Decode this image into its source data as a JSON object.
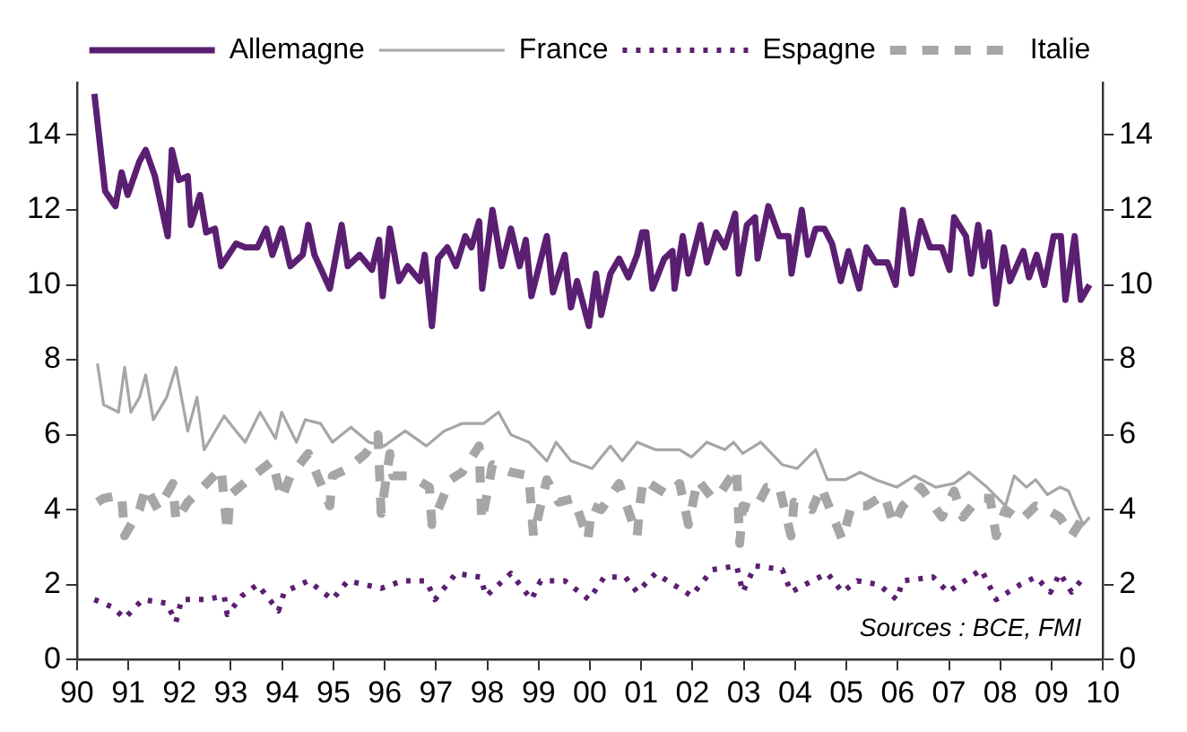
{
  "chart_data": {
    "type": "line",
    "annotations": [
      "Sources : BCE, FMI"
    ],
    "xlim": [
      1990,
      2010
    ],
    "xticks": [
      {
        "value": 1990,
        "label": "90"
      },
      {
        "value": 1991,
        "label": "91"
      },
      {
        "value": 1992,
        "label": "92"
      },
      {
        "value": 1993,
        "label": "93"
      },
      {
        "value": 1994,
        "label": "94"
      },
      {
        "value": 1995,
        "label": "95"
      },
      {
        "value": 1996,
        "label": "96"
      },
      {
        "value": 1997,
        "label": "97"
      },
      {
        "value": 1998,
        "label": "98"
      },
      {
        "value": 1999,
        "label": "99"
      },
      {
        "value": 2000,
        "label": "00"
      },
      {
        "value": 2001,
        "label": "01"
      },
      {
        "value": 2002,
        "label": "02"
      },
      {
        "value": 2003,
        "label": "03"
      },
      {
        "value": 2004,
        "label": "04"
      },
      {
        "value": 2005,
        "label": "05"
      },
      {
        "value": 2006,
        "label": "06"
      },
      {
        "value": 2007,
        "label": "07"
      },
      {
        "value": 2008,
        "label": "08"
      },
      {
        "value": 2009,
        "label": "09"
      },
      {
        "value": 2010,
        "label": "10"
      }
    ],
    "ylim": [
      0,
      15.4
    ],
    "yticks": [
      0,
      2,
      4,
      6,
      8,
      10,
      12,
      14
    ],
    "y2lim": [
      0,
      15.4
    ],
    "y2ticks": [
      0,
      2,
      4,
      6,
      8,
      10,
      12,
      14
    ],
    "grid": false,
    "legend": "top",
    "marker": "none",
    "series": [
      {
        "name": "Allemagne",
        "color": "#5b1f72",
        "line_style": "solid",
        "x": [
          1990.34,
          1990.55,
          1990.75,
          1990.87,
          1990.99,
          1991.22,
          1991.34,
          1991.52,
          1991.77,
          1991.85,
          1991.99,
          1992.16,
          1992.22,
          1992.4,
          1992.52,
          1992.69,
          1992.81,
          1993.1,
          1993.28,
          1993.52,
          1993.69,
          1993.81,
          1993.99,
          1994.16,
          1994.4,
          1994.51,
          1994.63,
          1994.93,
          1995.16,
          1995.28,
          1995.51,
          1995.75,
          1995.89,
          1995.96,
          1996.1,
          1996.28,
          1996.45,
          1996.69,
          1996.78,
          1996.92,
          1997.04,
          1997.22,
          1997.39,
          1997.57,
          1997.69,
          1997.84,
          1997.9,
          1998.1,
          1998.28,
          1998.46,
          1998.63,
          1998.75,
          1998.86,
          1999.16,
          1999.28,
          1999.51,
          1999.63,
          1999.75,
          1999.98,
          2000.12,
          2000.22,
          2000.4,
          2000.57,
          2000.75,
          2000.92,
          2001.02,
          2001.1,
          2001.22,
          2001.45,
          2001.61,
          2001.65,
          2001.81,
          2001.92,
          2002.16,
          2002.28,
          2002.46,
          2002.63,
          2002.83,
          2002.9,
          2003.06,
          2003.22,
          2003.27,
          2003.48,
          2003.69,
          2003.87,
          2003.93,
          2004.13,
          2004.25,
          2004.4,
          2004.57,
          2004.72,
          2004.89,
          2005.04,
          2005.25,
          2005.39,
          2005.57,
          2005.8,
          2005.96,
          2006.1,
          2006.27,
          2006.45,
          2006.63,
          2006.86,
          2007.01,
          2007.1,
          2007.33,
          2007.43,
          2007.57,
          2007.68,
          2007.78,
          2007.92,
          2008.07,
          2008.19,
          2008.45,
          2008.56,
          2008.71,
          2008.86,
          2009.04,
          2009.18,
          2009.27,
          2009.45,
          2009.57,
          2009.74
        ],
        "values": [
          15.1,
          12.5,
          12.1,
          13.0,
          12.4,
          13.3,
          13.6,
          12.9,
          11.3,
          13.6,
          12.8,
          12.9,
          11.6,
          12.4,
          11.4,
          11.5,
          10.5,
          11.1,
          11.0,
          11.0,
          11.5,
          10.8,
          11.5,
          10.5,
          10.8,
          11.6,
          10.8,
          9.9,
          11.6,
          10.5,
          10.8,
          10.4,
          11.2,
          9.7,
          11.5,
          10.1,
          10.5,
          10.1,
          10.8,
          8.9,
          10.7,
          11.0,
          10.5,
          11.3,
          11.0,
          11.7,
          9.9,
          12.0,
          10.5,
          11.5,
          10.5,
          11.2,
          9.7,
          11.3,
          9.8,
          10.8,
          9.4,
          10.1,
          8.9,
          10.3,
          9.2,
          10.3,
          10.7,
          10.2,
          10.8,
          11.4,
          11.4,
          9.9,
          10.7,
          10.9,
          9.9,
          11.3,
          10.3,
          11.6,
          10.6,
          11.4,
          11.0,
          11.9,
          10.3,
          11.6,
          11.8,
          10.7,
          12.1,
          11.3,
          11.3,
          10.3,
          12.0,
          10.8,
          11.5,
          11.5,
          11.1,
          10.1,
          10.9,
          9.9,
          11.0,
          10.6,
          10.6,
          10.0,
          12.0,
          10.3,
          11.7,
          11.0,
          11.0,
          10.4,
          11.8,
          11.3,
          10.3,
          11.6,
          10.5,
          11.4,
          9.5,
          11.0,
          10.1,
          10.9,
          10.2,
          10.8,
          10.0,
          11.3,
          11.3,
          9.6,
          11.3,
          9.6,
          10.0
        ]
      },
      {
        "name": "France",
        "color": "#a6a6a6",
        "line_style": "solid",
        "x": [
          1990.4,
          1990.52,
          1990.81,
          1990.93,
          1991.05,
          1991.22,
          1991.34,
          1991.49,
          1991.75,
          1991.93,
          1992.16,
          1992.34,
          1992.48,
          1992.87,
          1993.1,
          1993.28,
          1993.57,
          1993.87,
          1993.99,
          1994.28,
          1994.45,
          1994.75,
          1994.98,
          1995.34,
          1995.69,
          1995.99,
          1996.4,
          1996.81,
          1997.16,
          1997.51,
          1997.93,
          1998.22,
          1998.46,
          1998.81,
          1999.16,
          1999.34,
          1999.63,
          2000.04,
          2000.4,
          2000.63,
          2000.92,
          2001.28,
          2001.51,
          2001.75,
          2001.98,
          2002.28,
          2002.63,
          2002.8,
          2002.98,
          2003.33,
          2003.75,
          2004.04,
          2004.4,
          2004.63,
          2004.98,
          2005.27,
          2005.57,
          2005.98,
          2006.33,
          2006.74,
          2007.1,
          2007.39,
          2007.74,
          2008.1,
          2008.27,
          2008.51,
          2008.69,
          2008.92,
          2009.16,
          2009.33,
          2009.45,
          2009.62,
          2009.74
        ],
        "values": [
          7.9,
          6.8,
          6.6,
          7.8,
          6.6,
          7.0,
          7.6,
          6.4,
          7.0,
          7.8,
          6.1,
          7.0,
          5.6,
          6.5,
          6.1,
          5.8,
          6.6,
          5.9,
          6.6,
          5.8,
          6.4,
          6.3,
          5.8,
          6.2,
          5.8,
          5.7,
          6.1,
          5.7,
          6.1,
          6.3,
          6.3,
          6.6,
          6.0,
          5.8,
          5.3,
          5.8,
          5.3,
          5.1,
          5.7,
          5.3,
          5.8,
          5.6,
          5.6,
          5.6,
          5.4,
          5.8,
          5.6,
          5.8,
          5.5,
          5.8,
          5.2,
          5.1,
          5.6,
          4.8,
          4.8,
          5.0,
          4.8,
          4.6,
          4.9,
          4.6,
          4.7,
          5.0,
          4.6,
          4.1,
          4.9,
          4.6,
          4.8,
          4.4,
          4.6,
          4.5,
          4.1,
          3.6,
          3.8
        ]
      },
      {
        "name": "Espagne",
        "color": "#5b1f72",
        "line_style": "dotted",
        "x": [
          1990.34,
          1990.69,
          1990.93,
          1991.28,
          1991.75,
          1991.93,
          1992.04,
          1992.52,
          1992.87,
          1992.93,
          1993.22,
          1993.52,
          1993.93,
          1994.04,
          1994.51,
          1994.98,
          1995.28,
          1995.93,
          1996.34,
          1996.81,
          1996.98,
          1997.39,
          1997.86,
          1997.98,
          1998.46,
          1998.86,
          1999.04,
          1999.51,
          1999.98,
          2000.28,
          2000.69,
          2000.92,
          2001.28,
          2001.51,
          2001.98,
          2002.39,
          2002.86,
          2002.98,
          2003.22,
          2003.75,
          2003.92,
          2004.33,
          2004.63,
          2004.92,
          2005.21,
          2005.63,
          2005.98,
          2006.1,
          2006.69,
          2006.98,
          2007.63,
          2007.92,
          2008.39,
          2008.69,
          2008.98,
          2009.16,
          2009.39,
          2009.57
        ],
        "values": [
          1.6,
          1.4,
          1.1,
          1.6,
          1.5,
          1.0,
          1.6,
          1.6,
          1.7,
          1.2,
          1.7,
          2.0,
          1.3,
          1.8,
          2.1,
          1.6,
          2.1,
          1.9,
          2.1,
          2.1,
          1.6,
          2.3,
          2.2,
          1.7,
          2.3,
          1.6,
          2.1,
          2.1,
          1.6,
          2.2,
          2.2,
          1.8,
          2.3,
          2.1,
          1.7,
          2.4,
          2.5,
          1.8,
          2.5,
          2.4,
          1.8,
          2.1,
          2.3,
          1.8,
          2.1,
          2.0,
          1.6,
          2.1,
          2.2,
          1.8,
          2.4,
          1.6,
          2.0,
          2.2,
          1.8,
          2.3,
          1.8,
          2.1
        ]
      },
      {
        "name": "Italie",
        "color": "#a6a6a6",
        "line_style": "dashed",
        "x": [
          1990.4,
          1990.52,
          1990.87,
          1990.93,
          1991.22,
          1991.34,
          1991.58,
          1991.87,
          1991.93,
          1992.16,
          1992.46,
          1992.81,
          1992.93,
          1992.99,
          1993.34,
          1993.81,
          1993.99,
          1994.16,
          1994.51,
          1994.93,
          1994.98,
          1995.28,
          1995.63,
          1995.87,
          1995.93,
          1996.1,
          1996.16,
          1996.51,
          1996.87,
          1996.92,
          1997.28,
          1997.51,
          1997.84,
          1997.89,
          1997.98,
          1998.1,
          1998.46,
          1998.81,
          1998.9,
          1999.04,
          1999.16,
          1999.39,
          1999.69,
          1999.96,
          2000.04,
          2000.22,
          2000.57,
          2000.92,
          2000.98,
          2001.04,
          2001.51,
          2001.75,
          2001.92,
          2002.1,
          2002.39,
          2002.57,
          2002.86,
          2002.92,
          2002.98,
          2003.22,
          2003.45,
          2003.69,
          2003.92,
          2003.98,
          2004.33,
          2004.51,
          2004.92,
          2005.1,
          2005.39,
          2005.74,
          2005.92,
          2006.1,
          2006.45,
          2006.86,
          2007.1,
          2007.27,
          2007.57,
          2007.8,
          2007.92,
          2008.1,
          2008.39,
          2008.69,
          2008.92,
          2009.16,
          2009.39,
          2009.62,
          2009.74
        ],
        "values": [
          4.2,
          4.3,
          4.4,
          3.3,
          4.0,
          4.6,
          4.0,
          4.7,
          3.7,
          4.2,
          4.6,
          5.1,
          3.4,
          4.4,
          4.8,
          5.3,
          4.3,
          4.9,
          5.5,
          4.1,
          4.9,
          5.1,
          5.5,
          6.0,
          3.9,
          5.5,
          4.9,
          4.9,
          4.6,
          3.6,
          4.8,
          5.0,
          5.7,
          3.7,
          4.3,
          5.2,
          5.0,
          4.9,
          3.3,
          4.1,
          4.8,
          4.2,
          4.3,
          3.2,
          4.1,
          4.0,
          4.7,
          3.3,
          4.2,
          4.8,
          4.4,
          4.7,
          3.6,
          4.8,
          4.3,
          4.5,
          5.1,
          3.1,
          4.1,
          4.0,
          4.6,
          4.6,
          3.3,
          4.2,
          4.0,
          4.6,
          3.2,
          4.1,
          4.1,
          4.4,
          3.6,
          4.1,
          4.6,
          3.8,
          4.5,
          3.8,
          4.3,
          4.3,
          3.3,
          4.0,
          3.7,
          4.1,
          4.0,
          3.8,
          3.3,
          3.8,
          3.6
        ]
      }
    ]
  }
}
